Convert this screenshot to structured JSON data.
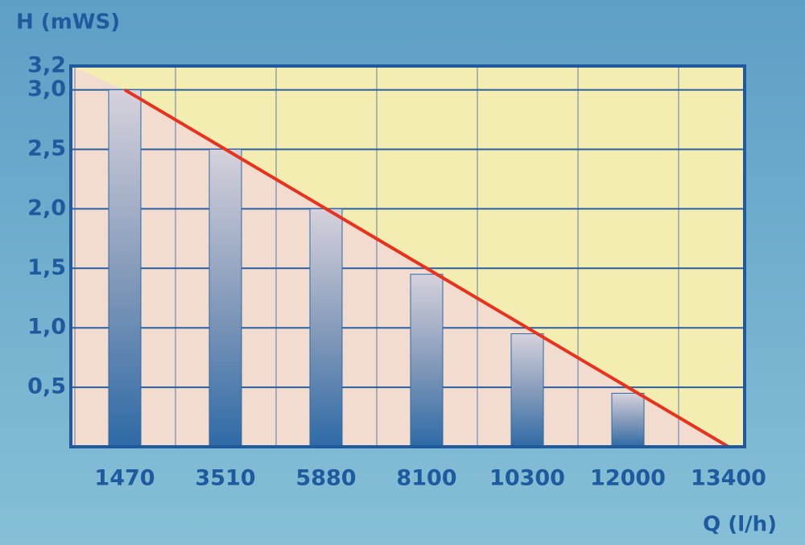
{
  "chart_data": {
    "type": "bar",
    "y_label": "H (mWS)",
    "x_label": "Q (l/h)",
    "categories": [
      "1470",
      "3510",
      "5880",
      "8100",
      "10300",
      "12000",
      "13400"
    ],
    "values": [
      3.0,
      2.5,
      2.0,
      1.45,
      0.95,
      0.45,
      null
    ],
    "color": "#2e6aa6",
    "curve": {
      "color": "#e8321e",
      "values": [
        3.0,
        2.5,
        2.0,
        1.5,
        1.0,
        0.5,
        0
      ]
    },
    "ylim": [
      0,
      3.2
    ],
    "yticks": [
      {
        "value": 0.5,
        "label": "0,5"
      },
      {
        "value": 1.0,
        "label": "1,0"
      },
      {
        "value": 1.5,
        "label": "1,5"
      },
      {
        "value": 2.0,
        "label": "2,0"
      },
      {
        "value": 2.5,
        "label": "2,5"
      },
      {
        "value": 3.0,
        "label": "3,0"
      },
      {
        "value": 3.2,
        "label": "3,2"
      }
    ],
    "grid": true
  }
}
